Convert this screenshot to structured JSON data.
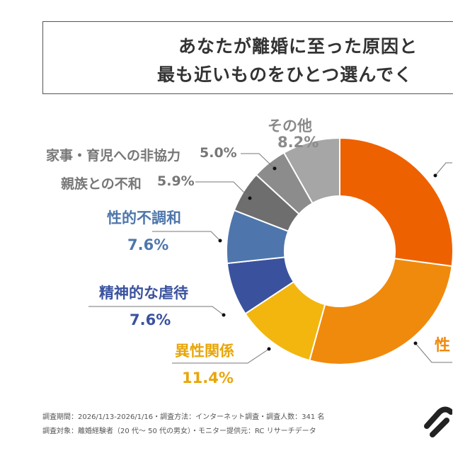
{
  "title": {
    "line1": "あなたが離婚に至った原因と",
    "line2": "最も近いものをひとつ選んでく"
  },
  "chart_data": {
    "type": "pie",
    "variant": "donut",
    "start": "top",
    "direction": "clockwise",
    "slices": [
      {
        "label": "",
        "value": 27.1,
        "color": "#EE6100"
      },
      {
        "label": "性",
        "value": 27.2,
        "color": "#F08A0C"
      },
      {
        "label": "異性関係",
        "value": 11.4,
        "display": "11.4%",
        "color": "#F2B60F"
      },
      {
        "label": "精神的な虐待",
        "value": 7.6,
        "display": "7.6%",
        "color": "#3A529E"
      },
      {
        "label": "性的不調和",
        "value": 7.6,
        "display": "7.6%",
        "color": "#4E76AC"
      },
      {
        "label": "親族との不和",
        "value": 5.9,
        "display": "5.9%",
        "color": "#6E6E6E"
      },
      {
        "label": "家事・育児への非協力",
        "value": 5.0,
        "display": "5.0%",
        "color": "#8C8C8C"
      },
      {
        "label": "その他",
        "value": 8.2,
        "display": "8.2%",
        "color": "#A6A6A6"
      }
    ]
  },
  "footer": {
    "line1": "調査期間：2026/1/13-2026/1/16・調査方法：インターネット調査・調査人数：341 名",
    "line2": "調査対象：離婚経験者（20 代～ 50 代の男女）・モニター提供元：RC リサーチデータ"
  }
}
